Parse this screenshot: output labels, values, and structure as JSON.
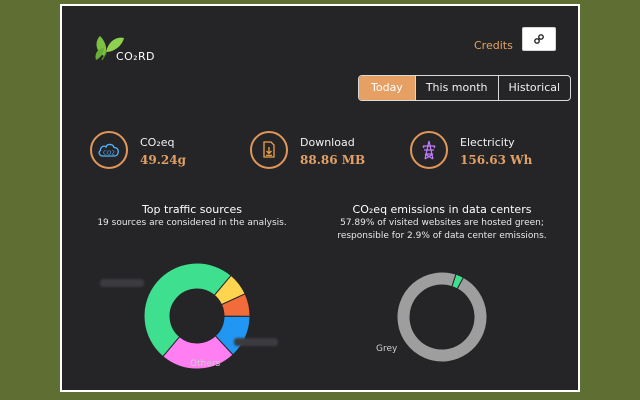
{
  "app": {
    "logo_text": "CO₂RD",
    "credits_label": "Credits",
    "settings_icon": "link-icon"
  },
  "tabs": [
    {
      "label": "Today",
      "active": true
    },
    {
      "label": "This month",
      "active": false
    },
    {
      "label": "Historical",
      "active": false
    }
  ],
  "metrics": {
    "co2": {
      "label": "CO₂eq",
      "value": "49.24g",
      "icon": "co2-cloud-icon"
    },
    "download": {
      "label": "Download",
      "value": "88.86 MB",
      "icon": "download-file-icon"
    },
    "electricity": {
      "label": "Electricity",
      "value": "156.63 Wh",
      "icon": "power-tower-icon"
    }
  },
  "traffic": {
    "title": "Top traffic sources",
    "subtitle": "19 sources are considered in the analysis."
  },
  "datacenters": {
    "title": "CO₂eq emissions in data centers",
    "subtitle_line1": "57.89% of visited websites are hosted green;",
    "subtitle_line2": "responsible for 2.9% of data center emissions."
  },
  "colors": {
    "accent": "#e6a064",
    "panel_bg": "#252528",
    "green_slice": "#3ee08f",
    "grey_slice": "#9e9e9e"
  },
  "chart_data": [
    {
      "type": "pie",
      "title": "Top traffic sources",
      "donut": true,
      "labels_visible": [
        "Others"
      ],
      "series": [
        {
          "name": "",
          "value": 50,
          "color": "#3ee08f"
        },
        {
          "name": "",
          "value": 7,
          "color": "#ffd54f"
        },
        {
          "name": "",
          "value": 7,
          "color": "#f26b3a"
        },
        {
          "name": "",
          "value": 13,
          "color": "#2196f3"
        },
        {
          "name": "Others",
          "value": 23,
          "color": "#ff7ef2"
        }
      ]
    },
    {
      "type": "pie",
      "title": "CO₂eq emissions in data centers",
      "donut": true,
      "labels_visible": [
        "Grey"
      ],
      "series": [
        {
          "name": "Green",
          "value": 2.9,
          "color": "#3ee08f"
        },
        {
          "name": "Grey",
          "value": 97.1,
          "color": "#9e9e9e"
        }
      ]
    }
  ]
}
